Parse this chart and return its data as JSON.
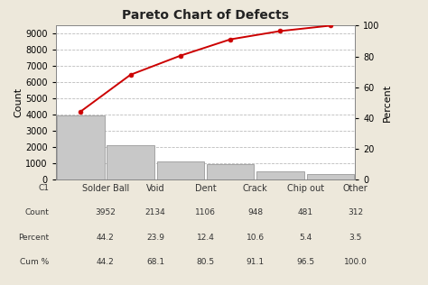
{
  "title": "Pareto Chart of Defects",
  "categories": [
    "Solder Ball",
    "Void",
    "Dent",
    "Crack",
    "Chip out",
    "Other"
  ],
  "counts": [
    3952,
    2134,
    1106,
    948,
    481,
    312
  ],
  "cum_pct": [
    44.2,
    68.1,
    80.5,
    91.1,
    96.5,
    100.0
  ],
  "bar_color": "#c8c8c8",
  "bar_edge_color": "#999999",
  "line_color": "#cc0000",
  "marker_color": "#cc0000",
  "background_color": "#ede8db",
  "plot_bg_color": "#ffffff",
  "grid_color": "#bbbbbb",
  "ylabel_left": "Count",
  "ylabel_right": "Percent",
  "ylim_left": [
    0,
    9500
  ],
  "ylim_right": [
    0,
    100
  ],
  "yticks_left": [
    0,
    1000,
    2000,
    3000,
    4000,
    5000,
    6000,
    7000,
    8000,
    9000
  ],
  "yticks_right": [
    0,
    20,
    40,
    60,
    80,
    100
  ],
  "table_rows": [
    "C1",
    "Count",
    "Percent",
    "Cum %"
  ],
  "table_categories": [
    "Solder Ball",
    "Void",
    "Dent",
    "Crack",
    "Chip out",
    "Other"
  ],
  "table_counts": [
    "3952",
    "2134",
    "1106",
    "948",
    "481",
    "312"
  ],
  "table_percent": [
    "44.2",
    "23.9",
    "12.4",
    "10.6",
    "5.4",
    "3.5"
  ],
  "table_cum": [
    "44.2",
    "68.1",
    "80.5",
    "91.1",
    "96.5",
    "100.0"
  ],
  "title_fontsize": 10,
  "axis_label_fontsize": 8,
  "tick_fontsize": 7,
  "table_fontsize": 6.5,
  "cat_fontsize": 7
}
